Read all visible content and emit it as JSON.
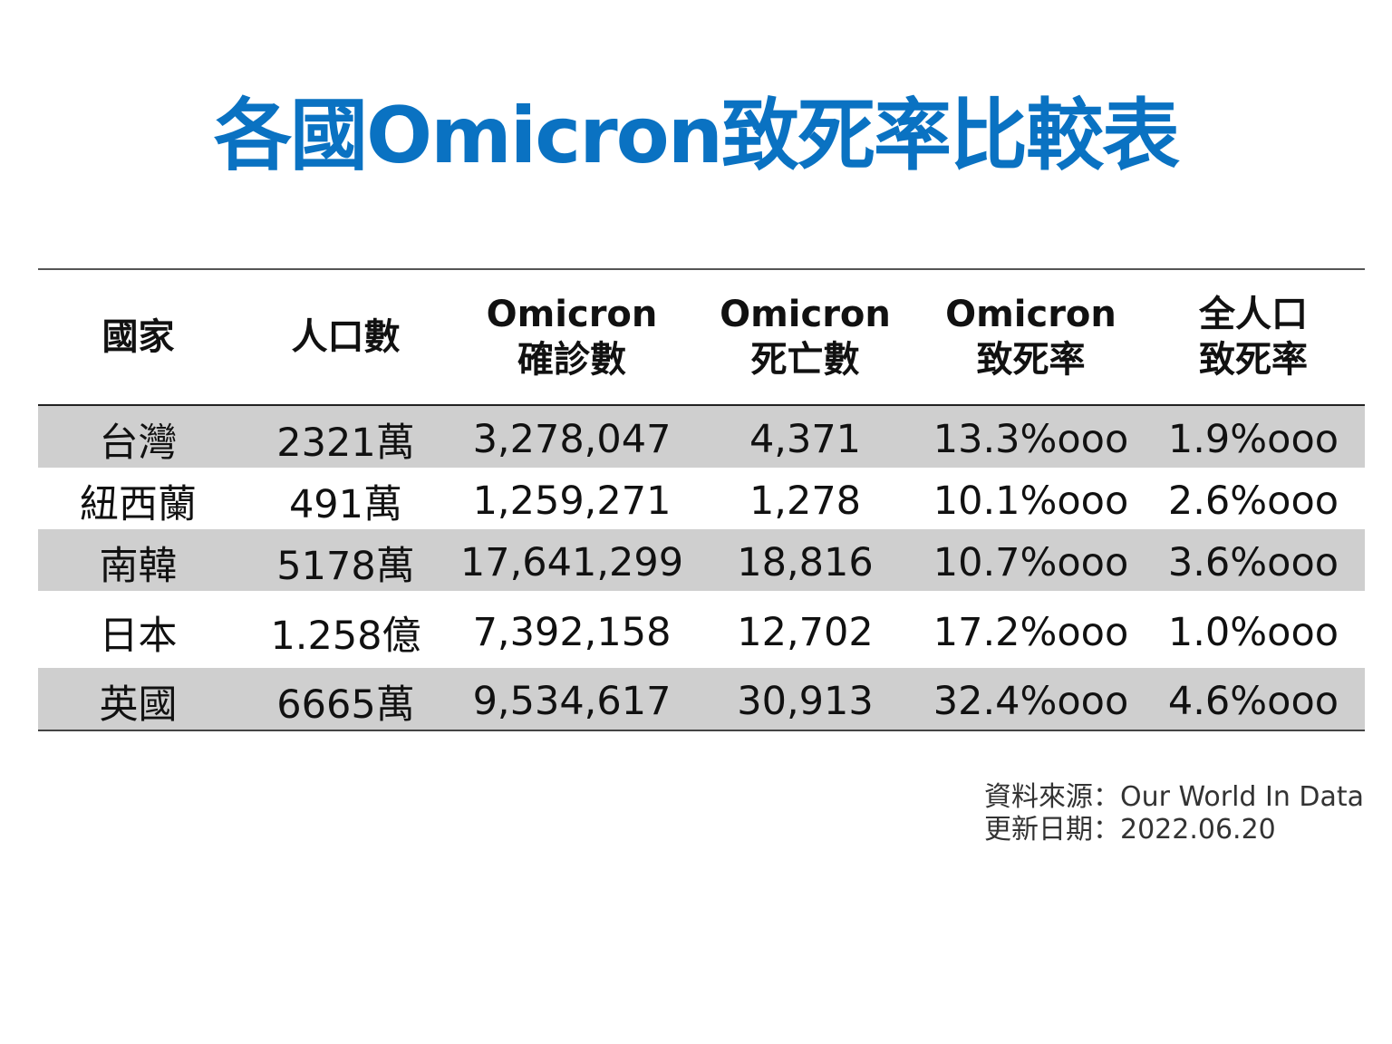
{
  "title": "各國Omicron致死率比較表",
  "header": [
    [
      "國家"
    ],
    [
      "人口數"
    ],
    [
      "Omicron",
      "確診數"
    ],
    [
      "Omicron",
      "死亡數"
    ],
    [
      "Omicron",
      "致死率"
    ],
    [
      "全人口",
      "致死率"
    ]
  ],
  "rows": [
    [
      "台灣",
      "2321萬",
      "3,278,047",
      "4,371",
      "13.3%ooo",
      "1.9%ooo"
    ],
    [
      "紐西蘭",
      "491萬",
      "1,259,271",
      "1,278",
      "10.1%ooo",
      "2.6%ooo"
    ],
    [
      "南韓",
      "5178萬",
      "17,641,299",
      "18,816",
      "10.7%ooo",
      "3.6%ooo"
    ],
    [
      "日本",
      "1.258億",
      "7,392,158",
      "12,702",
      "17.2%ooo",
      "1.0%ooo"
    ],
    [
      "英國",
      "6665萬",
      "9,534,617",
      "30,913",
      "32.4%ooo",
      "4.6%ooo"
    ]
  ],
  "source": {
    "line1": "資料來源：Our World In Data",
    "line2": "更新日期：2022.06.20"
  },
  "colors": {
    "title": "#0a72c2",
    "stripe": "#cfcfcf"
  },
  "chart_data": {
    "type": "table",
    "title": "各國Omicron致死率比較表",
    "columns": [
      "國家",
      "人口數",
      "Omicron 確診數",
      "Omicron 死亡數",
      "Omicron 致死率",
      "全人口 致死率"
    ],
    "rows": [
      [
        "台灣",
        "2321萬",
        "3,278,047",
        "4,371",
        "13.3%ooo",
        "1.9%ooo"
      ],
      [
        "紐西蘭",
        "491萬",
        "1,259,271",
        "1,278",
        "10.1%ooo",
        "2.6%ooo"
      ],
      [
        "南韓",
        "5178萬",
        "17,641,299",
        "18,816",
        "10.7%ooo",
        "3.6%ooo"
      ],
      [
        "日本",
        "1.258億",
        "7,392,158",
        "12,702",
        "17.2%ooo",
        "1.0%ooo"
      ],
      [
        "英國",
        "6665萬",
        "9,534,617",
        "30,913",
        "32.4%ooo",
        "4.6%ooo"
      ]
    ]
  }
}
